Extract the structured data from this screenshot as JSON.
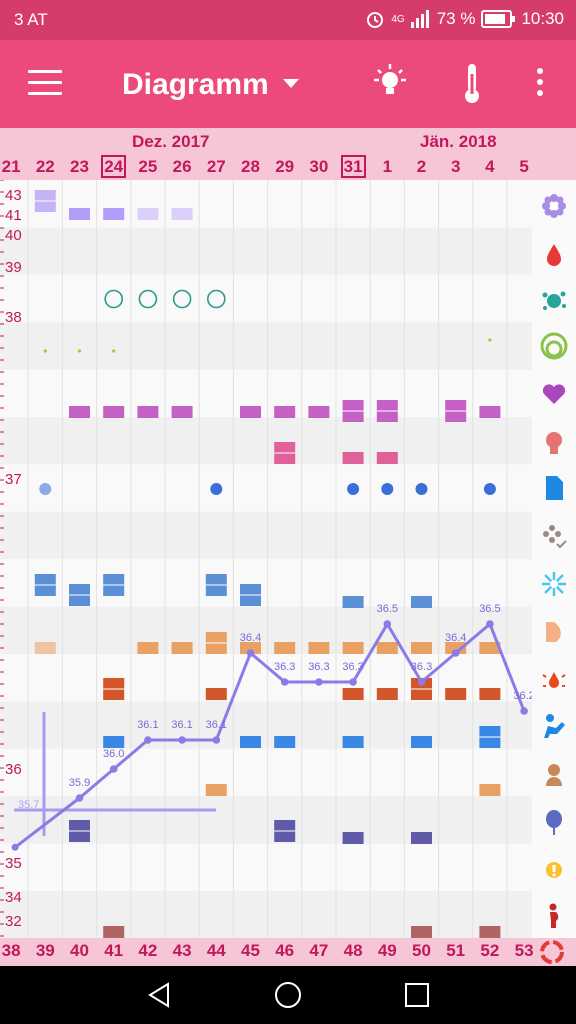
{
  "status_bar": {
    "carrier": "3 AT",
    "network": "4G",
    "battery": "73 %",
    "time": "10:30"
  },
  "app_bar": {
    "title": "Diagramm"
  },
  "date_header": {
    "month_left": "Dez. 2017",
    "month_right": "Jän. 2018",
    "days": [
      "21",
      "22",
      "23",
      "24",
      "25",
      "26",
      "27",
      "28",
      "29",
      "30",
      "31",
      "1",
      "2",
      "3",
      "4",
      "5"
    ],
    "boxed": [
      "24",
      "31"
    ]
  },
  "temp_scale": [
    "43",
    "41",
    "40",
    "39",
    "38",
    "37",
    "36",
    "35",
    "34",
    "32"
  ],
  "chart_data": {
    "type": "line",
    "x": [
      "40",
      "41",
      "42",
      "43",
      "44",
      "45",
      "46",
      "47",
      "48",
      "49",
      "50",
      "51",
      "52",
      "53"
    ],
    "y": [
      35.9,
      36.0,
      36.1,
      36.1,
      36.1,
      36.4,
      36.3,
      36.3,
      36.3,
      36.5,
      36.3,
      36.4,
      36.5,
      36.2
    ],
    "point_labels": [
      "35.9",
      "36.0",
      "36.1",
      "36.1",
      "36.1",
      "36.4",
      "36.3",
      "36.3",
      "36.3",
      "36.5",
      "36.3",
      "36.4",
      "36.5",
      "36.2"
    ],
    "extra_label": "35.7",
    "line_color": "#8c7ae6"
  },
  "cycle_days": [
    "38",
    "39",
    "40",
    "41",
    "42",
    "43",
    "44",
    "45",
    "46",
    "47",
    "48",
    "49",
    "50",
    "51",
    "52",
    "53"
  ],
  "sidebar_icons": [
    "flower-icon",
    "drop-icon",
    "splash-icon",
    "rings-icon",
    "heart-icon",
    "head-icon",
    "document-icon",
    "flower-check-icon",
    "sparkle-icon",
    "pregnancy-icon",
    "drop-burst-icon",
    "exercise-icon",
    "person-icon",
    "balloon-icon",
    "alert-icon",
    "pregnant-person-icon",
    "cycle-icon"
  ],
  "colors": {
    "primary": "#ec4a7b",
    "status": "#d63c6a",
    "header_bg": "#f7c6d6",
    "accent_text": "#c2185b"
  }
}
